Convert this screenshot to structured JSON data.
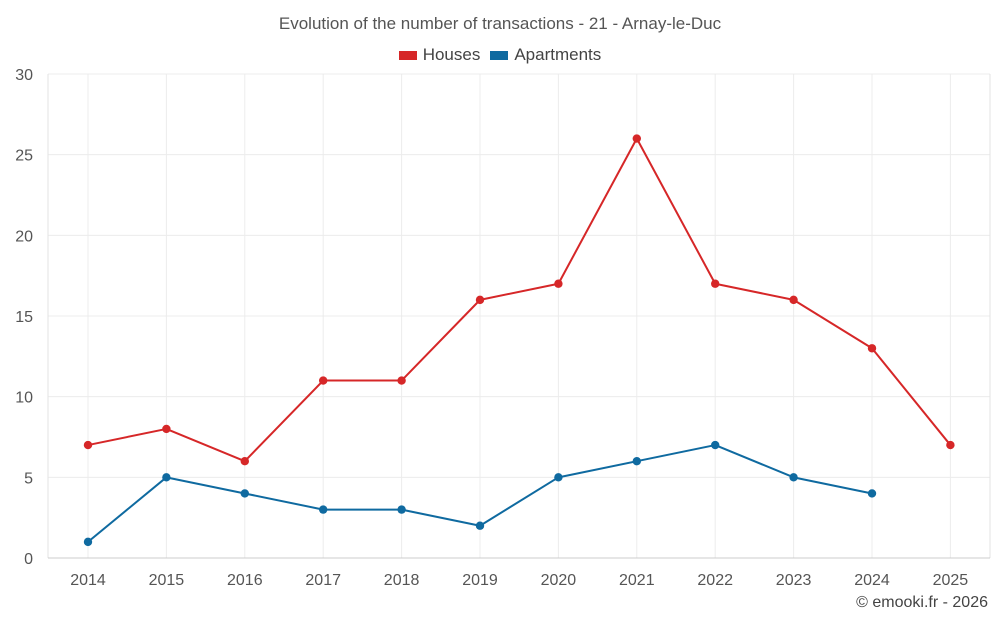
{
  "chart_data": {
    "type": "line",
    "title": "Evolution of the number of transactions - 21 - Arnay-le-Duc",
    "categories": [
      "2014",
      "2015",
      "2016",
      "2017",
      "2018",
      "2019",
      "2020",
      "2021",
      "2022",
      "2023",
      "2024",
      "2025"
    ],
    "series": [
      {
        "name": "Houses",
        "color": "#d62728",
        "values": [
          7,
          8,
          6,
          11,
          11,
          16,
          17,
          26,
          17,
          16,
          13,
          7
        ]
      },
      {
        "name": "Apartments",
        "color": "#0f6aa0",
        "values": [
          1,
          5,
          4,
          3,
          3,
          2,
          5,
          6,
          7,
          5,
          4,
          null
        ]
      }
    ],
    "yticks": [
      0,
      5,
      10,
      15,
      20,
      25,
      30
    ],
    "ylim": [
      0,
      30
    ],
    "grid": true,
    "legend_position": "top-center"
  },
  "copyright": "© emooki.fr - 2026"
}
